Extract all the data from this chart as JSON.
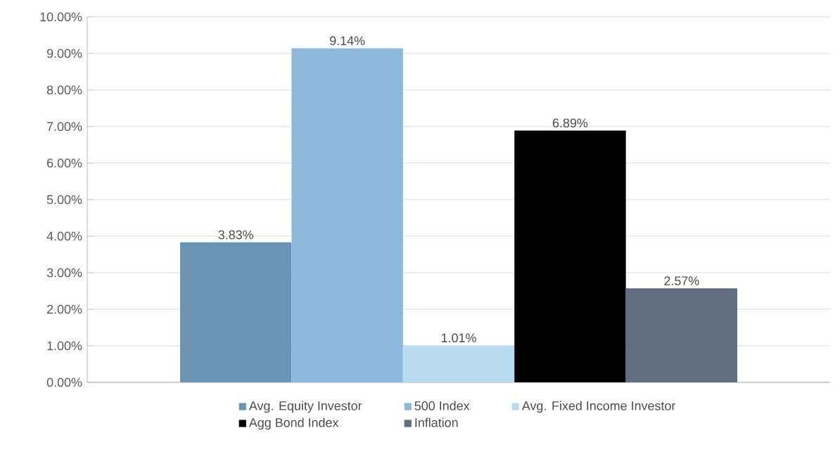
{
  "chart_data": {
    "type": "bar",
    "categories": [
      null
    ],
    "series": [
      {
        "name": "Avg. Equity Investor",
        "color": "#6a93b4",
        "values": [
          3.83
        ],
        "value_labels": [
          "3.83%"
        ]
      },
      {
        "name": "500 Index",
        "color": "#8db8db",
        "values": [
          9.14
        ],
        "value_labels": [
          "9.14%"
        ]
      },
      {
        "name": "Avg. Fixed Income Investor",
        "color": "#b9dcf3",
        "values": [
          1.01
        ],
        "value_labels": [
          "1.01%"
        ]
      },
      {
        "name": "Agg Bond Index",
        "color": "#000000",
        "values": [
          6.89
        ],
        "value_labels": [
          "6.89%"
        ]
      },
      {
        "name": "Inflation",
        "color": "#5f6f80",
        "values": [
          2.57
        ],
        "value_labels": [
          "2.57%"
        ]
      }
    ],
    "ylim": [
      0,
      10
    ],
    "yticks": [
      {
        "value": 0,
        "label": "0.00%"
      },
      {
        "value": 1,
        "label": "1.00%"
      },
      {
        "value": 2,
        "label": "2.00%"
      },
      {
        "value": 3,
        "label": "3.00%"
      },
      {
        "value": 4,
        "label": "4.00%"
      },
      {
        "value": 5,
        "label": "5.00%"
      },
      {
        "value": 6,
        "label": "6.00%"
      },
      {
        "value": 7,
        "label": "7.00%"
      },
      {
        "value": 8,
        "label": "8.00%"
      },
      {
        "value": 9,
        "label": "9.00%"
      },
      {
        "value": 10,
        "label": "10.00%"
      }
    ],
    "grid": "y",
    "legend": "bottom"
  }
}
